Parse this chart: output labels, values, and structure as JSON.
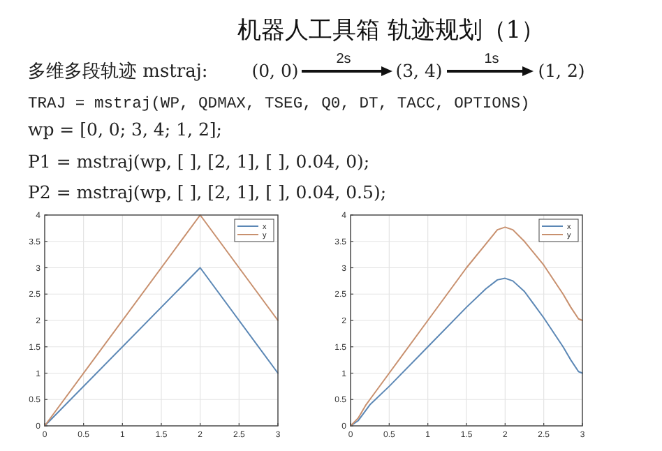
{
  "chart_data": [
    {
      "type": "other",
      "title": "机器人工具箱  轨迹规划（1）",
      "annotations": [
        "多维多段轨迹 mstraj:",
        "(0, 0)",
        "2s",
        "(3, 4)",
        "1s",
        "(1, 2)",
        "TRAJ = mstraj(WP, QDMAX, TSEG, Q0, DT, TACC, OPTIONS)",
        "wp = [0, 0; 3, 4; 1, 2];",
        "P1 = mstraj(wp, [  ], [2, 1], [  ], 0.04, 0);",
        "P2 = mstraj(wp, [  ], [2, 1], [  ], 0.04, 0.5);"
      ]
    },
    {
      "type": "line",
      "series": [
        {
          "name": "x",
          "color": "#5b87b5",
          "x": [
            0,
            2,
            3
          ],
          "values": [
            0,
            3,
            1
          ]
        },
        {
          "name": "y",
          "color": "#c8906e",
          "x": [
            0,
            2,
            3
          ],
          "values": [
            0,
            4,
            2
          ]
        }
      ],
      "xlim": [
        0,
        3
      ],
      "ylim": [
        0,
        4
      ],
      "xticks": [
        0,
        0.5,
        1,
        1.5,
        2,
        2.5,
        3
      ],
      "yticks": [
        0,
        0.5,
        1,
        1.5,
        2,
        2.5,
        3,
        3.5,
        4
      ],
      "grid": true,
      "legend": "top right"
    },
    {
      "type": "line",
      "series": [
        {
          "name": "x",
          "color": "#5b87b5",
          "x": [
            0,
            0.1,
            0.2,
            0.25,
            0.5,
            1,
            1.5,
            1.75,
            1.9,
            2,
            2.1,
            2.25,
            2.5,
            2.75,
            2.85,
            2.95,
            3
          ],
          "values": [
            0,
            0.1,
            0.3,
            0.4,
            0.75,
            1.5,
            2.25,
            2.6,
            2.77,
            2.8,
            2.75,
            2.55,
            2.05,
            1.5,
            1.25,
            1.03,
            1
          ]
        },
        {
          "name": "y",
          "color": "#c8906e",
          "x": [
            0,
            0.1,
            0.2,
            0.25,
            0.5,
            1,
            1.5,
            1.75,
            1.9,
            2,
            2.1,
            2.25,
            2.5,
            2.75,
            2.85,
            2.95,
            3
          ],
          "values": [
            0,
            0.15,
            0.4,
            0.5,
            1,
            2,
            3,
            3.45,
            3.72,
            3.77,
            3.72,
            3.5,
            3.05,
            2.5,
            2.25,
            2.03,
            2
          ]
        }
      ],
      "xlim": [
        0,
        3
      ],
      "ylim": [
        0,
        4
      ],
      "xticks": [
        0,
        0.5,
        1,
        1.5,
        2,
        2.5,
        3
      ],
      "yticks": [
        0,
        0.5,
        1,
        1.5,
        2,
        2.5,
        3,
        3.5,
        4
      ],
      "grid": true,
      "legend": "top right"
    }
  ]
}
